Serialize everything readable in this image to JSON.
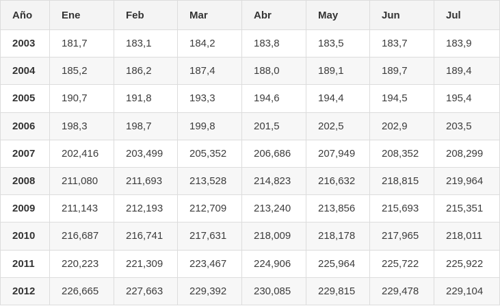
{
  "table": {
    "headers": [
      "Año",
      "Ene",
      "Feb",
      "Mar",
      "Abr",
      "May",
      "Jun",
      "Jul"
    ],
    "rows": [
      {
        "year": "2003",
        "values": [
          "181,7",
          "183,1",
          "184,2",
          "183,8",
          "183,5",
          "183,7",
          "183,9"
        ]
      },
      {
        "year": "2004",
        "values": [
          "185,2",
          "186,2",
          "187,4",
          "188,0",
          "189,1",
          "189,7",
          "189,4"
        ]
      },
      {
        "year": "2005",
        "values": [
          "190,7",
          "191,8",
          "193,3",
          "194,6",
          "194,4",
          "194,5",
          "195,4"
        ]
      },
      {
        "year": "2006",
        "values": [
          "198,3",
          "198,7",
          "199,8",
          "201,5",
          "202,5",
          "202,9",
          "203,5"
        ]
      },
      {
        "year": "2007",
        "values": [
          "202,416",
          "203,499",
          "205,352",
          "206,686",
          "207,949",
          "208,352",
          "208,299"
        ]
      },
      {
        "year": "2008",
        "values": [
          "211,080",
          "211,693",
          "213,528",
          "214,823",
          "216,632",
          "218,815",
          "219,964"
        ]
      },
      {
        "year": "2009",
        "values": [
          "211,143",
          "212,193",
          "212,709",
          "213,240",
          "213,856",
          "215,693",
          "215,351"
        ]
      },
      {
        "year": "2010",
        "values": [
          "216,687",
          "216,741",
          "217,631",
          "218,009",
          "218,178",
          "217,965",
          "218,011"
        ]
      },
      {
        "year": "2011",
        "values": [
          "220,223",
          "221,309",
          "223,467",
          "224,906",
          "225,964",
          "225,722",
          "225,922"
        ]
      },
      {
        "year": "2012",
        "values": [
          "226,665",
          "227,663",
          "229,392",
          "230,085",
          "229,815",
          "229,478",
          "229,104"
        ]
      }
    ]
  }
}
